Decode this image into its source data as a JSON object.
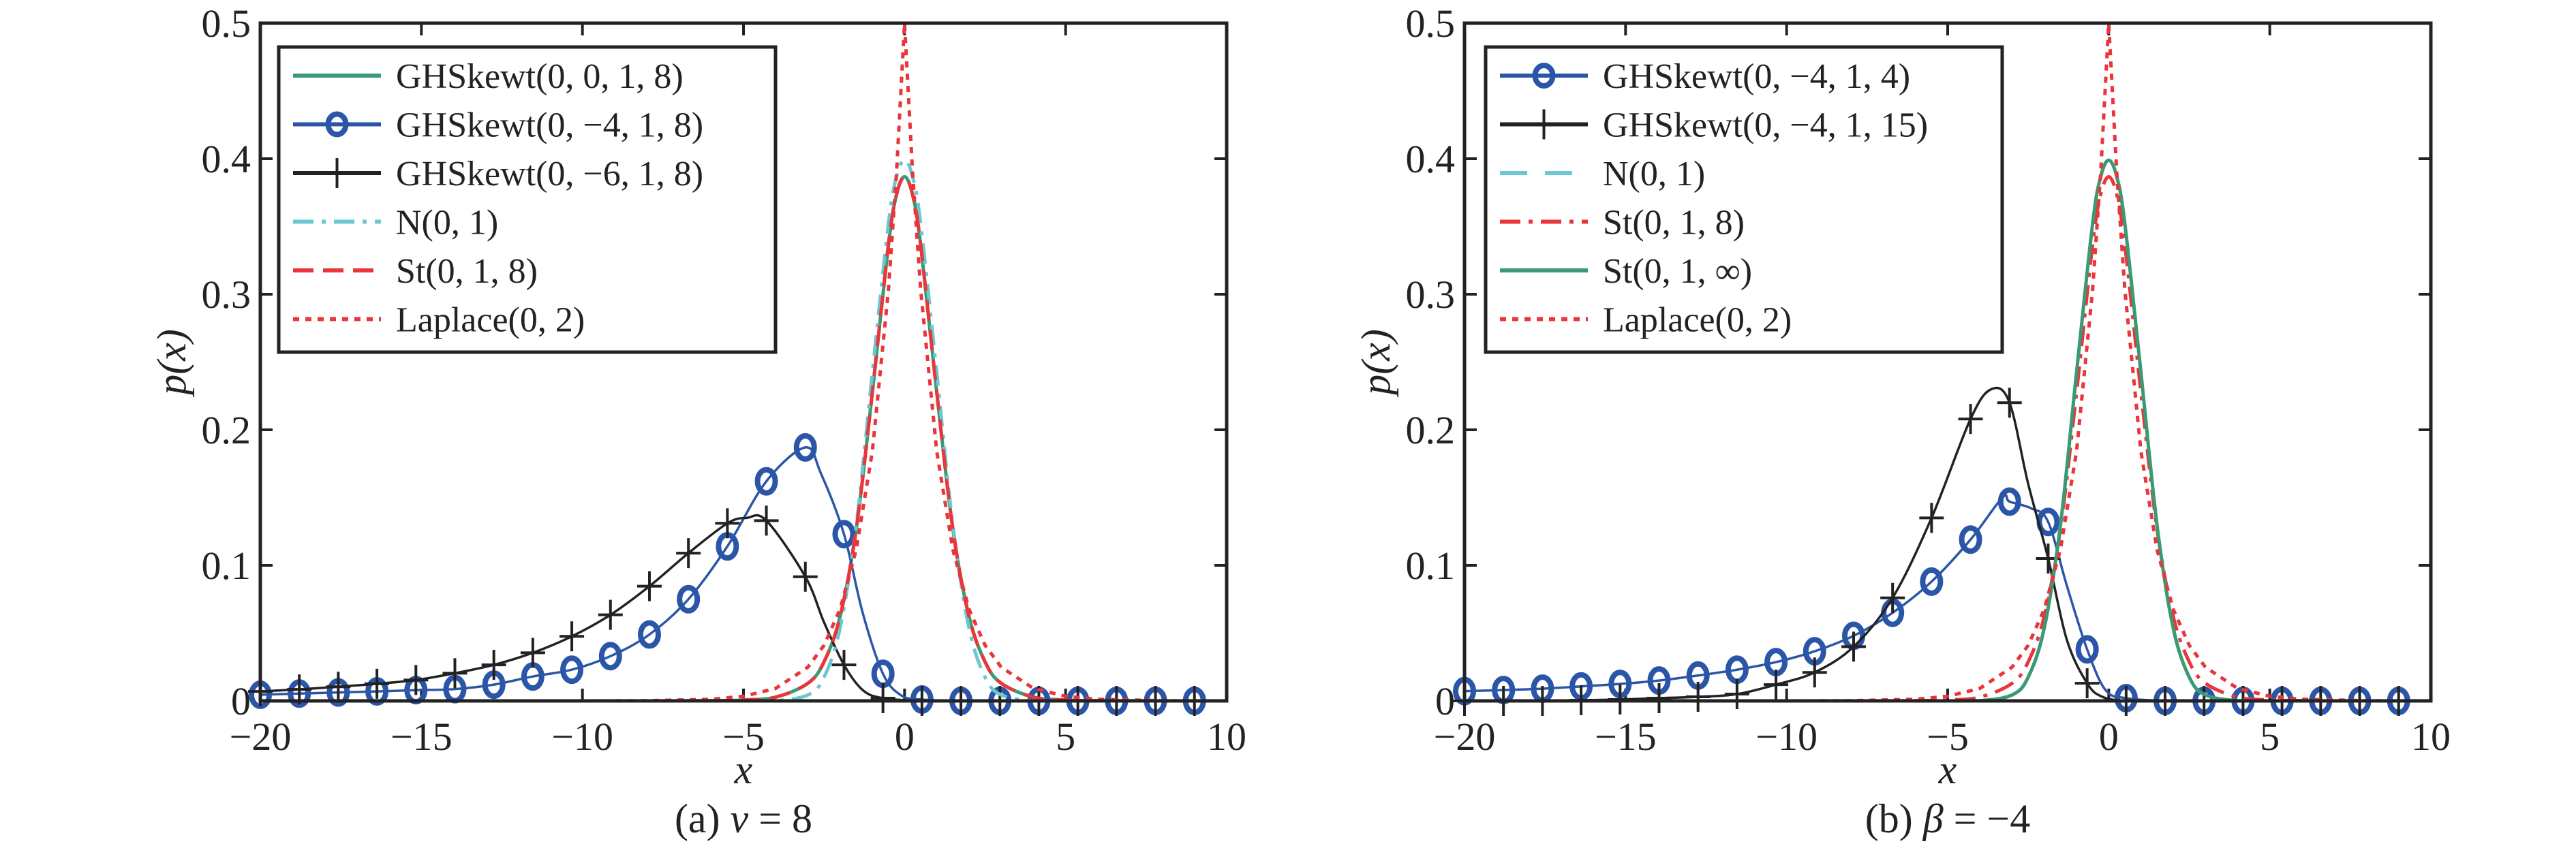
{
  "colors": {
    "green": "#3a9a73",
    "blue": "#2b56a8",
    "black": "#222222",
    "cyan": "#6cc8d0",
    "red": "#e8363a",
    "axis": "#222222"
  },
  "chart_data": [
    {
      "type": "line",
      "panel": "a",
      "caption": {
        "label": "(a)",
        "variable": "v",
        "rest": "= 8"
      },
      "xlabel": "x",
      "ylabel": "p(x)",
      "xlim": [
        -20,
        10
      ],
      "ylim": [
        0,
        0.5
      ],
      "xticks": [
        -20,
        -15,
        -10,
        -5,
        0,
        5,
        10
      ],
      "xtick_labels": [
        "−20",
        "−15",
        "−10",
        "−5",
        "0",
        "5",
        "10"
      ],
      "yticks": [
        0,
        0.1,
        0.2,
        0.3,
        0.4,
        0.5
      ],
      "ytick_labels": [
        "0",
        "0.1",
        "0.2",
        "0.3",
        "0.4",
        "0.5"
      ],
      "legend_position": "top-left",
      "marker_x": [
        -20,
        -18.79,
        -17.58,
        -16.38,
        -15.17,
        -13.96,
        -12.75,
        -11.54,
        -10.33,
        -9.13,
        -7.92,
        -6.71,
        -5.5,
        -4.29,
        -3.08,
        -1.88,
        -0.67,
        0.54,
        1.75,
        2.96,
        4.17,
        5.38,
        6.58,
        7.79,
        9.0
      ],
      "sym_x": [
        -20,
        -10,
        -8,
        -6,
        -5,
        -4,
        -3,
        -2.5,
        -2,
        -1.5,
        -1,
        -0.5,
        -0.25,
        0,
        0.25,
        0.5,
        1,
        1.5,
        2,
        2.5,
        3,
        4,
        5,
        6,
        8,
        10
      ],
      "series": [
        {
          "name": "GHSkewt(0, 0, 1, 8)",
          "color": "green",
          "style": "solid",
          "marker": "none",
          "kind": "sym",
          "y": [
            0,
            1e-05,
            2e-05,
            0.00018,
            0.00066,
            0.00276,
            0.013,
            0.0288,
            0.0624,
            0.1268,
            0.2276,
            0.3367,
            0.3734,
            0.3867,
            0.3734,
            0.3367,
            0.2276,
            0.1268,
            0.0624,
            0.0288,
            0.013,
            0.00276,
            0.00066,
            0.00018,
            2e-05,
            1e-05
          ]
        },
        {
          "name": "GHSkewt(0, −4, 1, 8)",
          "color": "blue",
          "style": "solid",
          "marker": "circle",
          "kind": "marker",
          "y": [
            0.0045,
            0.0054,
            0.0062,
            0.007,
            0.0079,
            0.0087,
            0.012,
            0.018,
            0.023,
            0.033,
            0.049,
            0.075,
            0.114,
            0.162,
            0.187,
            0.123,
            0.02,
            0.001,
            0,
            0,
            0,
            0,
            0,
            0,
            0
          ],
          "extra": [
            [
              -2.6,
              0.168
            ],
            [
              -1.3,
              0.065
            ],
            [
              -0.1,
              0.004
            ]
          ]
        },
        {
          "name": "GHSkewt(0, −6, 1, 8)",
          "color": "black",
          "style": "solid",
          "marker": "plus",
          "kind": "marker",
          "y": [
            0.007,
            0.0085,
            0.0104,
            0.0126,
            0.0154,
            0.0204,
            0.0266,
            0.0355,
            0.0476,
            0.0635,
            0.0846,
            0.109,
            0.131,
            0.133,
            0.0916,
            0.0266,
            0.002,
            0,
            0,
            0,
            0,
            0,
            0,
            0,
            0
          ],
          "extra": [
            [
              -4.9,
              0.135
            ],
            [
              -2.5,
              0.058
            ],
            [
              -1.3,
              0.008
            ]
          ]
        },
        {
          "name": "N(0, 1)",
          "color": "cyan",
          "style": "dashdot",
          "marker": "none",
          "kind": "sym",
          "y": [
            0,
            0,
            0,
            0,
            0,
            0.0001,
            0.0044,
            0.0175,
            0.054,
            0.1295,
            0.242,
            0.3521,
            0.3867,
            0.3989,
            0.3867,
            0.3521,
            0.242,
            0.1295,
            0.054,
            0.0175,
            0.0044,
            0.0001,
            0,
            0,
            0,
            0
          ]
        },
        {
          "name": "St(0, 1, 8)",
          "color": "red",
          "style": "dashed",
          "marker": "none",
          "kind": "sym",
          "y": [
            0,
            1e-05,
            2e-05,
            0.00018,
            0.00066,
            0.00276,
            0.013,
            0.0288,
            0.0624,
            0.1268,
            0.2276,
            0.3367,
            0.3734,
            0.3867,
            0.3734,
            0.3367,
            0.2276,
            0.1268,
            0.0624,
            0.0288,
            0.013,
            0.00276,
            0.00066,
            0.00018,
            2e-05,
            1e-05
          ]
        },
        {
          "name": "Laplace(0, 2)",
          "color": "red",
          "style": "dotted",
          "marker": "none",
          "kind": "sym",
          "linear": true,
          "y": [
            0,
            2e-05,
            0.00017,
            0.0012,
            0.0034,
            0.0092,
            0.0249,
            0.041,
            0.0677,
            0.1116,
            0.1839,
            0.3033,
            0.3894,
            0.5,
            0.3894,
            0.3033,
            0.1839,
            0.1116,
            0.0677,
            0.041,
            0.0249,
            0.0092,
            0.0034,
            0.0012,
            0.00017,
            2e-05
          ]
        }
      ]
    },
    {
      "type": "line",
      "panel": "b",
      "caption": {
        "label": "(b)",
        "variable": "β",
        "rest": "= −4"
      },
      "xlabel": "x",
      "ylabel": "p(x)",
      "xlim": [
        -20,
        10
      ],
      "ylim": [
        0,
        0.5
      ],
      "xticks": [
        -20,
        -15,
        -10,
        -5,
        0,
        5,
        10
      ],
      "xtick_labels": [
        "−20",
        "−15",
        "−10",
        "−5",
        "0",
        "5",
        "10"
      ],
      "yticks": [
        0,
        0.1,
        0.2,
        0.3,
        0.4,
        0.5
      ],
      "ytick_labels": [
        "0",
        "0.1",
        "0.2",
        "0.3",
        "0.4",
        "0.5"
      ],
      "legend_position": "top-left",
      "marker_x": [
        -20,
        -18.79,
        -17.58,
        -16.38,
        -15.17,
        -13.96,
        -12.75,
        -11.54,
        -10.33,
        -9.13,
        -7.92,
        -6.71,
        -5.5,
        -4.29,
        -3.08,
        -1.88,
        -0.67,
        0.54,
        1.75,
        2.96,
        4.17,
        5.38,
        6.58,
        7.79,
        9.0
      ],
      "sym_x": [
        -20,
        -10,
        -8,
        -6,
        -5,
        -4,
        -3,
        -2.5,
        -2,
        -1.5,
        -1,
        -0.5,
        -0.25,
        0,
        0.25,
        0.5,
        1,
        1.5,
        2,
        2.5,
        3,
        4,
        5,
        6,
        8,
        10
      ],
      "series": [
        {
          "name": "GHSkewt(0, −4, 1, 4)",
          "color": "blue",
          "style": "solid",
          "marker": "circle",
          "kind": "marker",
          "y": [
            0.0072,
            0.008,
            0.009,
            0.0107,
            0.0125,
            0.015,
            0.0187,
            0.023,
            0.0286,
            0.0366,
            0.048,
            0.065,
            0.088,
            0.119,
            0.147,
            0.132,
            0.038,
            0.002,
            0,
            0,
            0,
            0,
            0,
            0,
            0
          ],
          "extra": [
            [
              -3.3,
              0.15
            ],
            [
              -2.4,
              0.142
            ],
            [
              -1.3,
              0.085
            ],
            [
              -0.1,
              0.008
            ]
          ]
        },
        {
          "name": "GHSkewt(0, −4, 1, 15)",
          "color": "black",
          "style": "solid",
          "marker": "plus",
          "kind": "marker",
          "y": [
            0,
            0,
            0,
            0.0005,
            0.001,
            0.002,
            0.003,
            0.005,
            0.012,
            0.021,
            0.04,
            0.076,
            0.135,
            0.208,
            0.22,
            0.105,
            0.013,
            0,
            0,
            0,
            0,
            0,
            0,
            0,
            0
          ],
          "extra": [
            [
              -3.64,
              0.23
            ],
            [
              -2.5,
              0.16
            ],
            [
              -1.3,
              0.045
            ],
            [
              -0.2,
              0.003
            ]
          ]
        },
        {
          "name": "N(0, 1)",
          "color": "cyan",
          "style": "longdash",
          "marker": "none",
          "kind": "sym",
          "y": [
            0,
            0,
            0,
            0,
            0,
            0.0001,
            0.0044,
            0.0175,
            0.054,
            0.1295,
            0.242,
            0.3521,
            0.3867,
            0.3989,
            0.3867,
            0.3521,
            0.242,
            0.1295,
            0.054,
            0.0175,
            0.0044,
            0.0001,
            0,
            0,
            0,
            0
          ]
        },
        {
          "name": "St(0, 1, 8)",
          "color": "red",
          "style": "dashdot",
          "marker": "none",
          "kind": "sym",
          "y": [
            0,
            1e-05,
            2e-05,
            0.00018,
            0.00066,
            0.00276,
            0.013,
            0.0288,
            0.0624,
            0.1268,
            0.2276,
            0.3367,
            0.3734,
            0.3867,
            0.3734,
            0.3367,
            0.2276,
            0.1268,
            0.0624,
            0.0288,
            0.013,
            0.00276,
            0.00066,
            0.00018,
            2e-05,
            1e-05
          ]
        },
        {
          "name": "St(0, 1, ∞)",
          "color": "green",
          "style": "solid",
          "marker": "none",
          "kind": "sym",
          "y": [
            0,
            0,
            0,
            0,
            0,
            0.0001,
            0.0044,
            0.0175,
            0.054,
            0.1295,
            0.242,
            0.3521,
            0.3867,
            0.3989,
            0.3867,
            0.3521,
            0.242,
            0.1295,
            0.054,
            0.0175,
            0.0044,
            0.0001,
            0,
            0,
            0,
            0
          ]
        },
        {
          "name": "Laplace(0, 2)",
          "color": "red",
          "style": "dotted",
          "marker": "none",
          "kind": "sym",
          "linear": true,
          "y": [
            0,
            2e-05,
            0.00017,
            0.0012,
            0.0034,
            0.0092,
            0.0249,
            0.041,
            0.0677,
            0.1116,
            0.1839,
            0.3033,
            0.3894,
            0.5,
            0.3894,
            0.3033,
            0.1839,
            0.1116,
            0.0677,
            0.041,
            0.0249,
            0.0092,
            0.0034,
            0.0012,
            0.00017,
            2e-05
          ]
        }
      ]
    }
  ]
}
